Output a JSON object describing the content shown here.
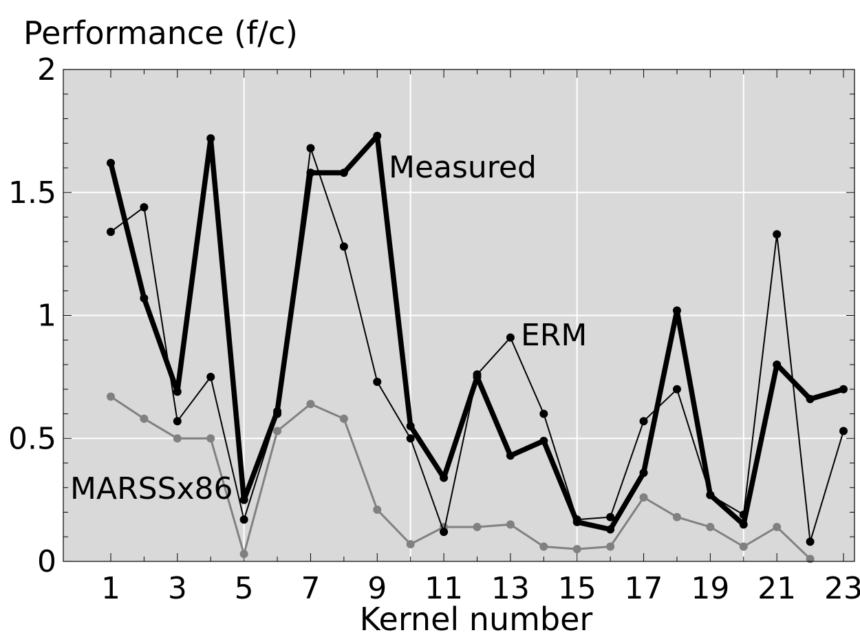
{
  "chart_data": {
    "type": "line",
    "title": "",
    "ylabel": "Performance (f/c)",
    "xlabel": "Kernel number",
    "xlim": [
      0,
      24.3
    ],
    "ylim": [
      0,
      2
    ],
    "x_ticks": [
      1,
      3,
      5,
      7,
      9,
      11,
      13,
      15,
      17,
      19,
      21,
      23
    ],
    "x_tick_labels": [
      "1",
      "3",
      "5",
      "7",
      "9",
      "11",
      "13",
      "15",
      "17",
      "19",
      "21",
      "23"
    ],
    "y_ticks": [
      0,
      0.5,
      1,
      1.5,
      2
    ],
    "y_tick_labels": [
      "0",
      "0.5",
      "1",
      "1.5",
      "2"
    ],
    "x_gridlines": [
      5,
      10,
      15,
      20
    ],
    "y_gridlines": [
      0.5,
      1,
      1.5
    ],
    "background": "#d9d9d9",
    "grid": true,
    "x": [
      1,
      2,
      3,
      4,
      5,
      6,
      7,
      8,
      9,
      10,
      11,
      12,
      13,
      14,
      15,
      16,
      17,
      18,
      19,
      20,
      21,
      22,
      23
    ],
    "series": [
      {
        "name": "Measured",
        "color": "#000000",
        "values": [
          1.62,
          1.07,
          0.69,
          1.72,
          0.25,
          0.61,
          1.58,
          1.58,
          1.73,
          0.55,
          0.34,
          0.75,
          0.43,
          0.49,
          0.16,
          0.13,
          0.36,
          1.02,
          0.27,
          0.15,
          0.8,
          0.66,
          0.7
        ]
      },
      {
        "name": "ERM",
        "color": "#000000",
        "values": [
          1.34,
          1.44,
          0.57,
          0.75,
          0.17,
          0.6,
          1.68,
          1.28,
          0.73,
          0.5,
          0.12,
          0.76,
          0.91,
          0.6,
          0.17,
          0.18,
          0.57,
          0.7,
          0.27,
          0.19,
          1.33,
          0.08,
          0.53
        ]
      },
      {
        "name": "MARSSx86",
        "color": "#808080",
        "values": [
          0.67,
          0.58,
          0.5,
          0.5,
          0.03,
          0.53,
          0.64,
          0.58,
          0.21,
          0.07,
          0.14,
          0.14,
          0.15,
          0.06,
          0.05,
          0.06,
          0.26,
          0.18,
          0.14,
          0.06,
          0.14,
          0.01,
          null
        ]
      }
    ],
    "annotations": [
      {
        "text": "Measured",
        "series": "Measured"
      },
      {
        "text": "ERM",
        "series": "ERM"
      },
      {
        "text": "MARSSx86",
        "series": "MARSSx86"
      }
    ]
  }
}
